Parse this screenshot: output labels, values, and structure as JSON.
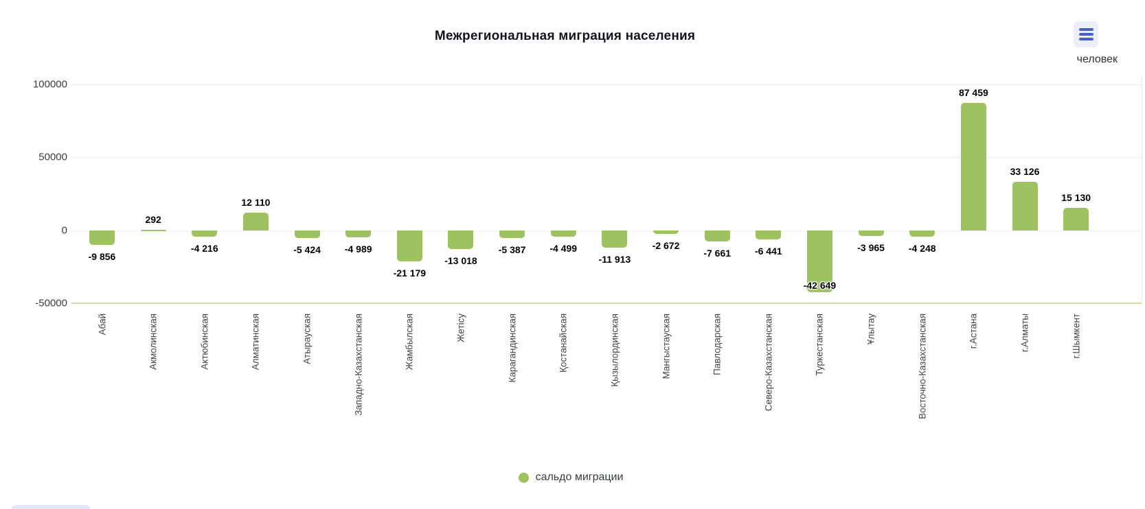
{
  "chart_data": {
    "type": "bar",
    "title": "Межрегиональная миграция населения",
    "unit": "человек",
    "legend_label": "сальдо миграции",
    "legend_position": "bottom",
    "grid": "horizontal",
    "categories": [
      "Абай",
      "Акмолинская",
      "Актюбинская",
      "Алматинская",
      "Атырауская",
      "Западно-Казахстанская",
      "Жамбылская",
      "Жетісу",
      "Карагандинская",
      "Қостанайская",
      "Қызылординская",
      "Мангыстауская",
      "Павлодарская",
      "Северо-Казахстанская",
      "Туркестанская",
      "Ұлытау",
      "Восточно-Казахстанская",
      "г.Астана",
      "г.Алматы",
      "г.Шымкент"
    ],
    "series": [
      {
        "name": "сальдо миграции",
        "values": [
          -9856,
          292,
          -4216,
          12110,
          -5424,
          -4989,
          -21179,
          -13018,
          -5387,
          -4499,
          -11913,
          -2672,
          -7661,
          -6441,
          -42649,
          -3965,
          -4248,
          87459,
          33126,
          15130
        ]
      }
    ],
    "value_labels": [
      "-9 856",
      "292",
      "-4 216",
      "12 110",
      "-5 424",
      "-4 989",
      "-21 179",
      "-13 018",
      "-5 387",
      "-4 499",
      "-11 913",
      "-2 672",
      "-7 661",
      "-6 441",
      "-42 649",
      "-3 965",
      "-4 248",
      "87 459",
      "33 126",
      "15 130"
    ],
    "yticks": [
      100000,
      50000,
      0,
      -50000
    ],
    "ytick_labels": [
      "100000",
      "50000",
      "0",
      "-50000"
    ],
    "ylim": [
      -50000,
      100000
    ],
    "bar_color": "#9EC262",
    "axis_border_color": "#D5DAA6",
    "menu_icon_color": "#4A5FC1",
    "menu_icon_bg": "#ECEEF9"
  }
}
